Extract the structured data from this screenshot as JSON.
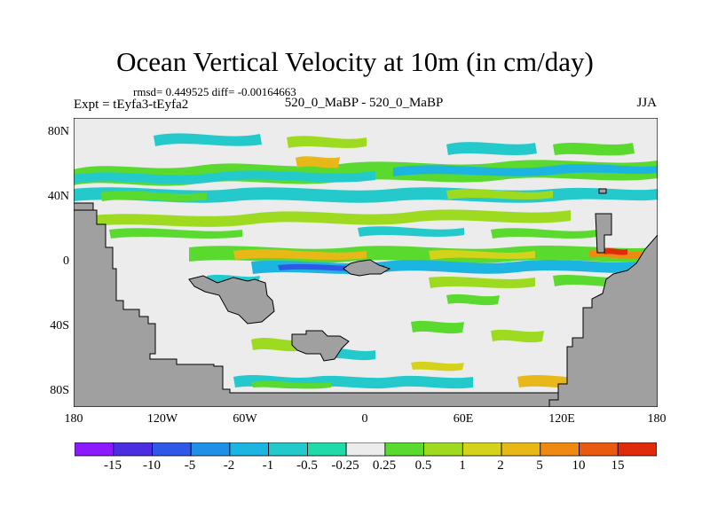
{
  "title": "Ocean Vertical Velocity at 10m (in cm/day)",
  "stats": "rmsd= 0.449525 diff= -0.00164663",
  "experiment": "Expt = tEyfa3-tEyfa2",
  "center_string": "520_0_MaBP - 520_0_MaBP",
  "season": "JJA",
  "lat_labels": [
    "80N",
    "40N",
    "0",
    "40S",
    "80S"
  ],
  "lon_labels": [
    "180",
    "120W",
    "60W",
    "0",
    "60E",
    "120E",
    "180"
  ],
  "colorbar": {
    "labels": [
      "-15",
      "-10",
      "-5",
      "-2",
      "-1",
      "-0.5",
      "-0.25",
      "0.25",
      "0.5",
      "1",
      "2",
      "5",
      "10",
      "15"
    ],
    "colors": [
      "#8c1aff",
      "#4b2ee0",
      "#2f58e6",
      "#1e90e8",
      "#1cb4e0",
      "#24c9cc",
      "#22d9a8",
      "#ececec",
      "#5ad92e",
      "#9edb20",
      "#d4d21a",
      "#e8b818",
      "#ee8a12",
      "#e85a10",
      "#e02a0c"
    ]
  },
  "colors": {
    "land": "#a0a0a0",
    "ocean_neutral": "#ececec"
  }
}
